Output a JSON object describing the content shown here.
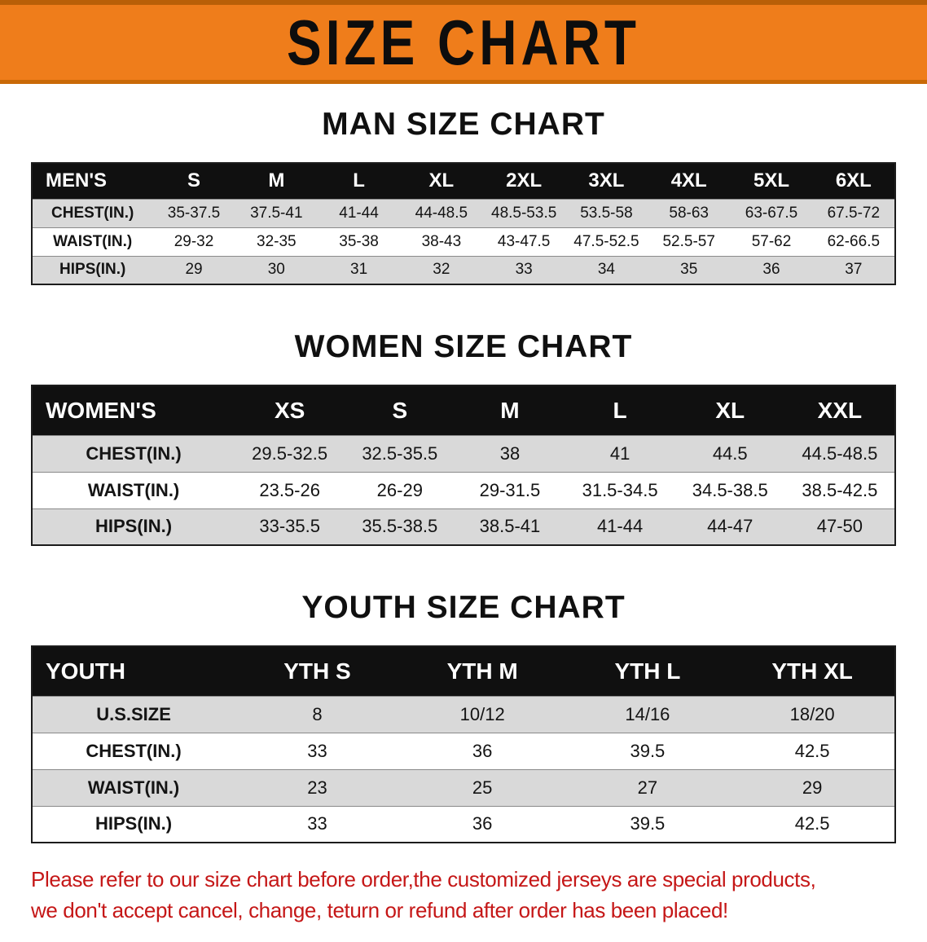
{
  "banner": {
    "title": "SIZE CHART",
    "background_color": "#ef7d1b"
  },
  "sections": [
    {
      "id": "man-size-chart",
      "heading": "MAN SIZE CHART",
      "table": {
        "header": [
          "MEN'S",
          "S",
          "M",
          "L",
          "XL",
          "2XL",
          "3XL",
          "4XL",
          "5XL",
          "6XL"
        ],
        "rows": [
          [
            "CHEST(IN.)",
            "35-37.5",
            "37.5-41",
            "41-44",
            "44-48.5",
            "48.5-53.5",
            "53.5-58",
            "58-63",
            "63-67.5",
            "67.5-72"
          ],
          [
            "WAIST(IN.)",
            "29-32",
            "32-35",
            "35-38",
            "38-43",
            "43-47.5",
            "47.5-52.5",
            "52.5-57",
            "57-62",
            "62-66.5"
          ],
          [
            "HIPS(IN.)",
            "29",
            "30",
            "31",
            "32",
            "33",
            "34",
            "35",
            "36",
            "37"
          ]
        ]
      }
    },
    {
      "id": "women-size-chart",
      "heading": "WOMEN SIZE CHART",
      "table": {
        "header": [
          "WOMEN'S",
          "XS",
          "S",
          "M",
          "L",
          "XL",
          "XXL"
        ],
        "rows": [
          [
            "CHEST(IN.)",
            "29.5-32.5",
            "32.5-35.5",
            "38",
            "41",
            "44.5",
            "44.5-48.5"
          ],
          [
            "WAIST(IN.)",
            "23.5-26",
            "26-29",
            "29-31.5",
            "31.5-34.5",
            "34.5-38.5",
            "38.5-42.5"
          ],
          [
            "HIPS(IN.)",
            "33-35.5",
            "35.5-38.5",
            "38.5-41",
            "41-44",
            "44-47",
            "47-50"
          ]
        ]
      }
    },
    {
      "id": "youth-size-chart",
      "heading": "YOUTH SIZE CHART",
      "table": {
        "header": [
          "YOUTH",
          "YTH S",
          "YTH M",
          "YTH L",
          "YTH XL"
        ],
        "rows": [
          [
            "U.S.SIZE",
            "8",
            "10/12",
            "14/16",
            "18/20"
          ],
          [
            "CHEST(IN.)",
            "33",
            "36",
            "39.5",
            "42.5"
          ],
          [
            "WAIST(IN.)",
            "23",
            "25",
            "27",
            "29"
          ],
          [
            "HIPS(IN.)",
            "33",
            "36",
            "39.5",
            "42.5"
          ]
        ]
      }
    }
  ],
  "footer": {
    "line1": "Please refer to our size chart before order,the customized jerseys are special products,",
    "line2": "we don't accept cancel, change, teturn or refund after order has been placed!",
    "text_color": "#c51717"
  }
}
